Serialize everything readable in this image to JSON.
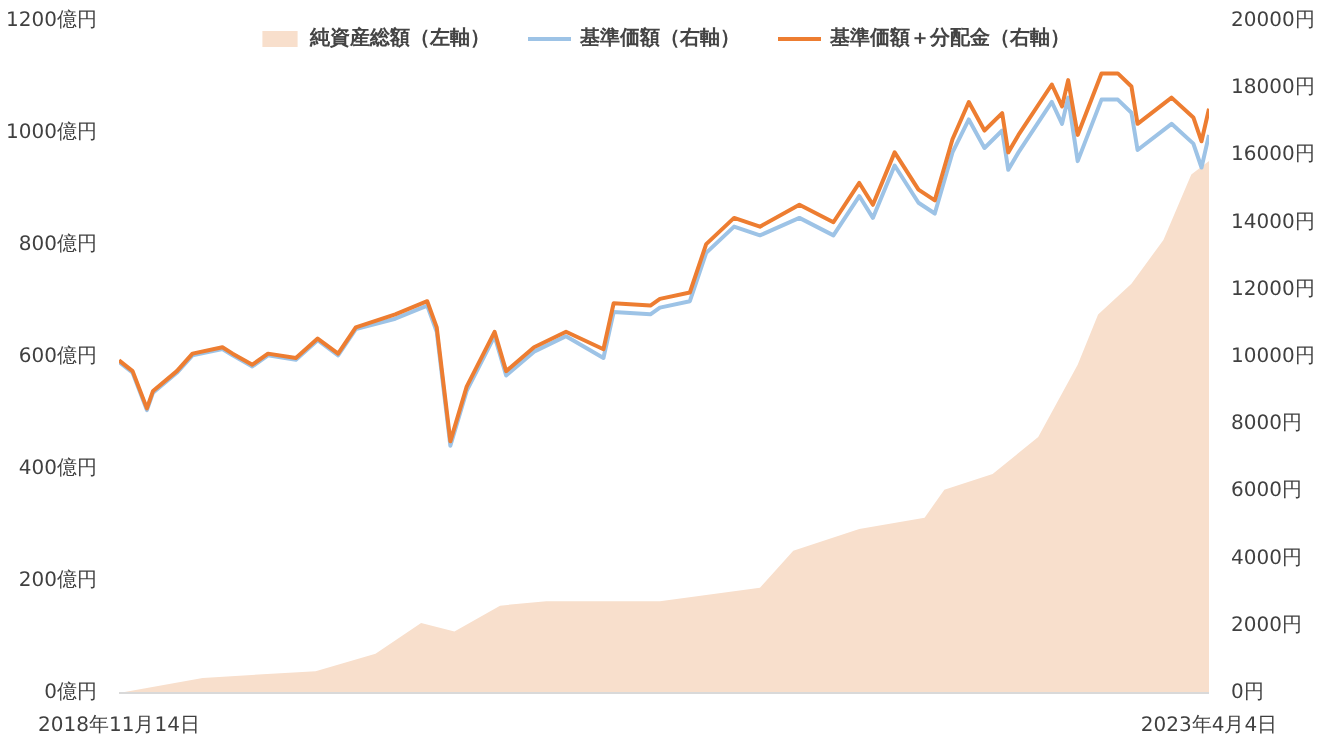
{
  "chart_data": {
    "type": "line",
    "xlim": [
      "2018-11-14",
      "2023-04-04"
    ],
    "xticks": [
      {
        "value": "2018-11-14",
        "label": "2018年11月14日"
      },
      {
        "value": "2023-04-04",
        "label": "2023年4月4日"
      }
    ],
    "ylim": [
      0,
      1200
    ],
    "yticks": [
      {
        "value": 0,
        "label": "0億円"
      },
      {
        "value": 200,
        "label": "200億円"
      },
      {
        "value": 400,
        "label": "400億円"
      },
      {
        "value": 600,
        "label": "600億円"
      },
      {
        "value": 800,
        "label": "800億円"
      },
      {
        "value": 1000,
        "label": "1000億円"
      },
      {
        "value": 1200,
        "label": "1200億円"
      }
    ],
    "y2lim": [
      0,
      20000
    ],
    "y2ticks": [
      {
        "value": 0,
        "label": "0円"
      },
      {
        "value": 2000,
        "label": "2000円"
      },
      {
        "value": 4000,
        "label": "4000円"
      },
      {
        "value": 6000,
        "label": "6000円"
      },
      {
        "value": 8000,
        "label": "8000円"
      },
      {
        "value": 10000,
        "label": "10000円"
      },
      {
        "value": 12000,
        "label": "12000円"
      },
      {
        "value": 14000,
        "label": "14000円"
      },
      {
        "value": 16000,
        "label": "16000円"
      },
      {
        "value": 18000,
        "label": "18000円"
      },
      {
        "value": 20000,
        "label": "20000円"
      }
    ],
    "grid": false,
    "legend": "top",
    "series": [
      {
        "name": "純資産総額（左軸）",
        "type": "area",
        "color": "#f8dfcc",
        "x": [
          "2018-11-14",
          "2019-03-17",
          "2019-08-30",
          "2019-11-26",
          "2020-02-01",
          "2020-03-21",
          "2020-05-27",
          "2020-08-03",
          "2021-01-17",
          "2021-06-13",
          "2021-08-01",
          "2021-11-06",
          "2022-02-10",
          "2022-03-11",
          "2022-05-21",
          "2022-07-27",
          "2022-09-23",
          "2022-10-23",
          "2022-12-11",
          "2023-01-27",
          "2023-03-09",
          "2023-04-04"
        ],
        "values": [
          0,
          27,
          39,
          70,
          125,
          110,
          156,
          164,
          164,
          188,
          254,
          293,
          313,
          363,
          391,
          457,
          586,
          676,
          731,
          809,
          926,
          950
        ]
      },
      {
        "name": "基準価額（右軸）",
        "axis": "y2",
        "color": "#9dc3e6",
        "x": [
          "2018-11-14",
          "2018-12-04",
          "2018-12-25",
          "2019-01-03",
          "2019-02-07",
          "2019-03-02",
          "2019-04-15",
          "2019-04-30",
          "2019-05-29",
          "2019-06-21",
          "2019-08-01",
          "2019-09-02",
          "2019-10-02",
          "2019-10-28",
          "2019-12-25",
          "2020-02-10",
          "2020-02-24",
          "2020-03-15",
          "2020-04-08",
          "2020-05-19",
          "2020-06-05",
          "2020-07-16",
          "2020-09-01",
          "2020-10-26",
          "2020-11-10",
          "2021-01-03",
          "2021-01-17",
          "2021-03-02",
          "2021-03-26",
          "2021-05-06",
          "2021-06-13",
          "2021-08-10",
          "2021-09-29",
          "2021-11-06",
          "2021-11-26",
          "2021-12-28",
          "2022-02-01",
          "2022-02-25",
          "2022-03-23",
          "2022-04-16",
          "2022-05-09",
          "2022-06-04",
          "2022-06-13",
          "2022-06-28",
          "2022-08-16",
          "2022-08-31",
          "2022-09-09",
          "2022-09-23",
          "2022-10-28",
          "2022-11-21",
          "2022-12-11",
          "2022-12-20",
          "2023-02-08",
          "2023-03-12",
          "2023-03-24",
          "2023-04-04"
        ],
        "values": [
          9850,
          9530,
          8420,
          8940,
          9530,
          10050,
          10240,
          10050,
          9720,
          10050,
          9920,
          10500,
          10050,
          10830,
          11140,
          11530,
          10750,
          7360,
          8990,
          10620,
          9450,
          10160,
          10620,
          9970,
          11340,
          11270,
          11470,
          11660,
          13100,
          13880,
          13620,
          14140,
          13620,
          14790,
          14140,
          15700,
          14590,
          14270,
          16090,
          17070,
          16220,
          16740,
          15570,
          16090,
          17590,
          16940,
          17720,
          15830,
          17660,
          17660,
          17270,
          16160,
          16940,
          16350,
          15640,
          16610
        ]
      },
      {
        "name": "基準価額＋分配金（右軸）",
        "axis": "y2",
        "color": "#ed7d31",
        "x": [
          "2018-11-14",
          "2018-12-04",
          "2018-12-25",
          "2019-01-03",
          "2019-02-07",
          "2019-03-02",
          "2019-04-15",
          "2019-04-30",
          "2019-05-29",
          "2019-06-21",
          "2019-08-01",
          "2019-09-02",
          "2019-10-02",
          "2019-10-28",
          "2019-12-25",
          "2020-02-10",
          "2020-02-24",
          "2020-03-15",
          "2020-04-08",
          "2020-05-19",
          "2020-06-05",
          "2020-07-16",
          "2020-09-01",
          "2020-10-26",
          "2020-11-10",
          "2021-01-03",
          "2021-01-17",
          "2021-03-02",
          "2021-03-26",
          "2021-05-06",
          "2021-06-13",
          "2021-08-10",
          "2021-09-29",
          "2021-11-06",
          "2021-11-26",
          "2021-12-28",
          "2022-02-01",
          "2022-02-25",
          "2022-03-23",
          "2022-04-16",
          "2022-05-09",
          "2022-06-04",
          "2022-06-13",
          "2022-06-28",
          "2022-08-16",
          "2022-08-31",
          "2022-09-09",
          "2022-09-23",
          "2022-10-28",
          "2022-11-21",
          "2022-12-11",
          "2022-12-20",
          "2023-02-08",
          "2023-03-12",
          "2023-03-24",
          "2023-04-04"
        ],
        "values": [
          9900,
          9580,
          8470,
          8990,
          9580,
          10100,
          10290,
          10100,
          9770,
          10100,
          9970,
          10550,
          10100,
          10880,
          11270,
          11660,
          10880,
          7490,
          9120,
          10750,
          9580,
          10290,
          10750,
          10230,
          11600,
          11530,
          11730,
          11920,
          13360,
          14140,
          13880,
          14530,
          14010,
          15180,
          14530,
          16090,
          14980,
          14660,
          16480,
          17590,
          16740,
          17260,
          16090,
          16610,
          18110,
          17460,
          18240,
          16610,
          18440,
          18440,
          18050,
          16940,
          17720,
          17130,
          16420,
          17390
        ]
      }
    ]
  }
}
